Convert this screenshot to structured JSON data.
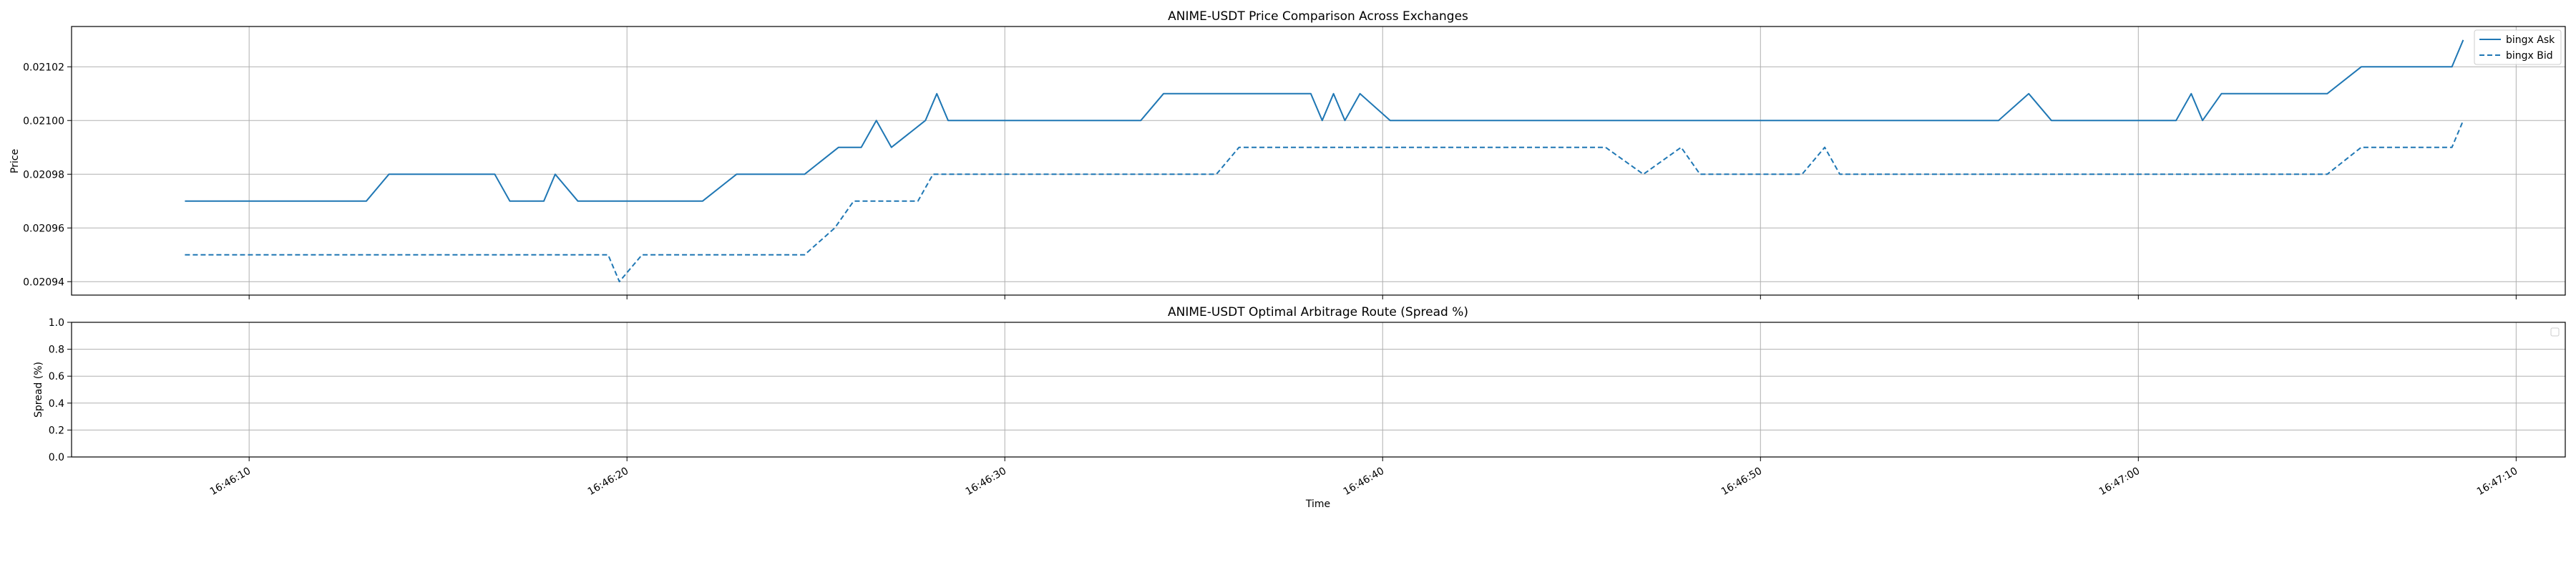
{
  "chart_data": [
    {
      "type": "line",
      "title": "ANIME-USDT Price Comparison Across Exchanges",
      "xlabel": "",
      "ylabel": "Price",
      "x_unit": "seconds after 16:46:00",
      "xlim": [
        5.3,
        71.3
      ],
      "ylim": [
        0.020935,
        0.021035
      ],
      "yticks": [
        0.02094,
        0.02096,
        0.02098,
        0.021,
        0.02102
      ],
      "ytick_labels": [
        "0.02094",
        "0.02096",
        "0.02098",
        "0.02100",
        "0.02102"
      ],
      "grid": true,
      "legend_position": "top-right",
      "series": [
        {
          "name": "bingx Ask",
          "style": "solid",
          "color": "#1f77b4",
          "points": [
            [
              8.3,
              0.02097
            ],
            [
              13.1,
              0.02097
            ],
            [
              13.7,
              0.02098
            ],
            [
              16.5,
              0.02098
            ],
            [
              16.9,
              0.02097
            ],
            [
              17.8,
              0.02097
            ],
            [
              18.1,
              0.02098
            ],
            [
              18.7,
              0.02097
            ],
            [
              22.0,
              0.02097
            ],
            [
              22.9,
              0.02098
            ],
            [
              24.7,
              0.02098
            ],
            [
              25.6,
              0.02099
            ],
            [
              26.2,
              0.02099
            ],
            [
              26.6,
              0.021
            ],
            [
              27.0,
              0.02099
            ],
            [
              27.9,
              0.021
            ],
            [
              28.2,
              0.02101
            ],
            [
              28.5,
              0.021
            ],
            [
              33.6,
              0.021
            ],
            [
              34.2,
              0.02101
            ],
            [
              38.1,
              0.02101
            ],
            [
              38.4,
              0.021
            ],
            [
              38.7,
              0.02101
            ],
            [
              39.0,
              0.021
            ],
            [
              39.4,
              0.02101
            ],
            [
              40.2,
              0.021
            ],
            [
              56.3,
              0.021
            ],
            [
              57.1,
              0.02101
            ],
            [
              57.7,
              0.021
            ],
            [
              61.0,
              0.021
            ],
            [
              61.4,
              0.02101
            ],
            [
              61.7,
              0.021
            ],
            [
              62.2,
              0.02101
            ],
            [
              65.0,
              0.02101
            ],
            [
              65.9,
              0.02102
            ],
            [
              68.3,
              0.02102
            ],
            [
              68.6,
              0.02103
            ]
          ]
        },
        {
          "name": "bingx Bid",
          "style": "dashed",
          "color": "#1f77b4",
          "points": [
            [
              8.3,
              0.02095
            ],
            [
              19.5,
              0.02095
            ],
            [
              19.8,
              0.02094
            ],
            [
              20.4,
              0.02095
            ],
            [
              24.7,
              0.02095
            ],
            [
              25.5,
              0.02096
            ],
            [
              26.0,
              0.02097
            ],
            [
              27.7,
              0.02097
            ],
            [
              28.1,
              0.02098
            ],
            [
              35.6,
              0.02098
            ],
            [
              36.2,
              0.02099
            ],
            [
              45.9,
              0.02099
            ],
            [
              46.9,
              0.02098
            ],
            [
              47.9,
              0.02099
            ],
            [
              48.4,
              0.02098
            ],
            [
              51.1,
              0.02098
            ],
            [
              51.7,
              0.02099
            ],
            [
              52.1,
              0.02098
            ],
            [
              65.0,
              0.02098
            ],
            [
              65.9,
              0.02099
            ],
            [
              68.3,
              0.02099
            ],
            [
              68.6,
              0.021
            ]
          ]
        }
      ]
    },
    {
      "type": "line",
      "title": "ANIME-USDT Optimal Arbitrage Route (Spread %)",
      "xlabel": "Time",
      "ylabel": "Spread (%)",
      "ylim": [
        0,
        1
      ],
      "yticks": [
        0,
        0.2,
        0.4,
        0.6,
        0.8,
        1.0
      ],
      "ytick_labels": [
        "0.0",
        "0.2",
        "0.4",
        "0.6",
        "0.8",
        "1.0"
      ],
      "grid": true,
      "legend_position": "top-right",
      "series": []
    }
  ],
  "x_axis": {
    "xlim": [
      5.3,
      71.3
    ],
    "ticks": [
      10,
      20,
      30,
      40,
      50,
      60,
      70
    ],
    "tick_labels": [
      "16:46:10",
      "16:46:20",
      "16:46:30",
      "16:46:40",
      "16:46:50",
      "16:47:00",
      "16:47:10"
    ]
  }
}
